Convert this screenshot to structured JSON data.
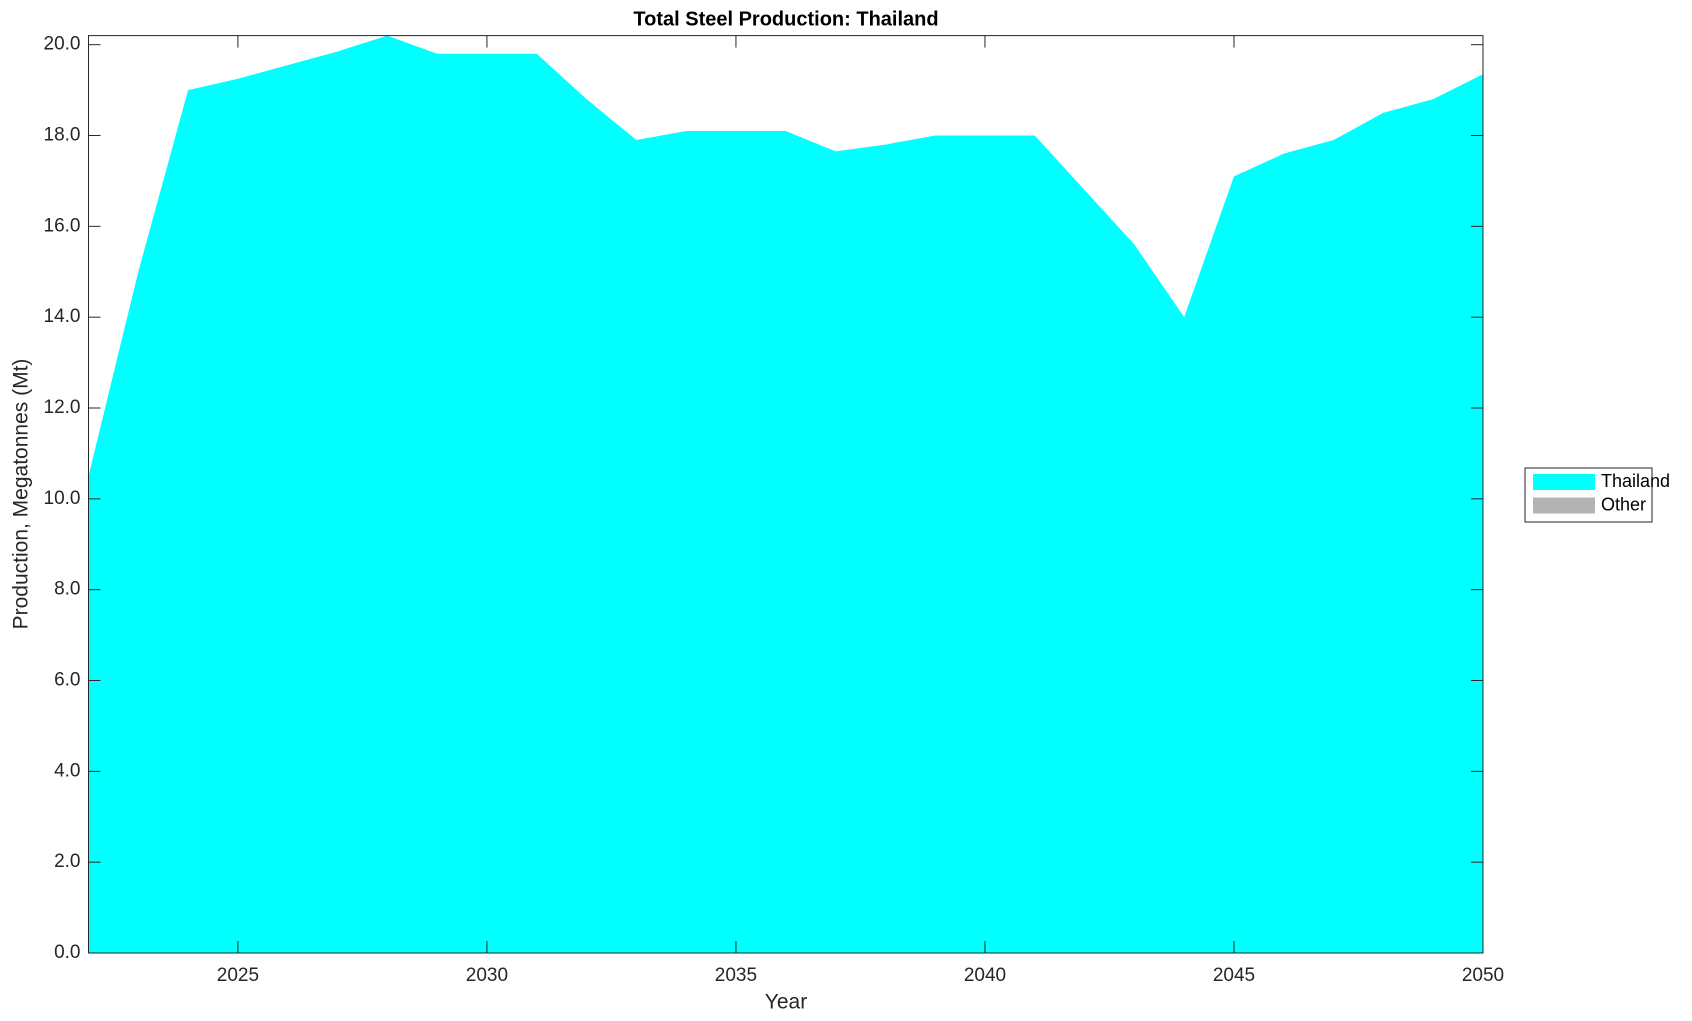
{
  "chart_data": {
    "type": "stacked_area",
    "title": "Total Steel Production: Thailand",
    "xlabel": "Year",
    "ylabel": "Production, Megatonnes (Mt)",
    "x": [
      2022,
      2023,
      2024,
      2025,
      2026,
      2027,
      2028,
      2029,
      2030,
      2031,
      2032,
      2033,
      2034,
      2035,
      2036,
      2037,
      2038,
      2039,
      2040,
      2041,
      2042,
      2043,
      2044,
      2045,
      2046,
      2047,
      2048,
      2049,
      2050
    ],
    "series": [
      {
        "name": "Thailand",
        "color": "#00ffff",
        "values": [
          10.5,
          15.0,
          19.0,
          19.25,
          19.55,
          19.85,
          20.2,
          19.8,
          19.8,
          19.8,
          18.8,
          17.9,
          18.1,
          18.1,
          18.1,
          17.65,
          17.8,
          18.0,
          18.0,
          18.0,
          16.8,
          15.6,
          14.0,
          17.1,
          17.6,
          17.9,
          18.5,
          18.8,
          19.35
        ]
      },
      {
        "name": "Other",
        "color": "#b3b3b3",
        "values": [
          0,
          0,
          0,
          0,
          0,
          0,
          0,
          0,
          0,
          0,
          0,
          0,
          0,
          0,
          0,
          0,
          0,
          0,
          0,
          0,
          0,
          0,
          0,
          0,
          0,
          0,
          0,
          0,
          0
        ]
      }
    ],
    "xlim": [
      2022,
      2050
    ],
    "xticks": [
      2025,
      2030,
      2035,
      2040,
      2045,
      2050
    ],
    "ylim": [
      0,
      20.2
    ],
    "yticks": [
      {
        "value": 0,
        "label": "0.0"
      },
      {
        "value": 2,
        "label": "2.0"
      },
      {
        "value": 4,
        "label": "4.0"
      },
      {
        "value": 6,
        "label": "6.0"
      },
      {
        "value": 8,
        "label": "8.0"
      },
      {
        "value": 10,
        "label": "10.0"
      },
      {
        "value": 12,
        "label": "12.0"
      },
      {
        "value": 14,
        "label": "14.0"
      },
      {
        "value": 16,
        "label": "16.0"
      },
      {
        "value": 18,
        "label": "18.0"
      },
      {
        "value": 20,
        "label": "20.0"
      }
    ],
    "legend": "east-outside"
  }
}
